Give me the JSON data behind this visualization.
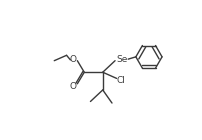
{
  "bg_color": "#ffffff",
  "line_color": "#3a3a3a",
  "line_width": 1.0,
  "text_color": "#3a3a3a",
  "font_size": 6.5,
  "labels": {
    "O_ester": "O",
    "O_carbonyl": "O",
    "Se": "Se",
    "Cl": "Cl"
  }
}
